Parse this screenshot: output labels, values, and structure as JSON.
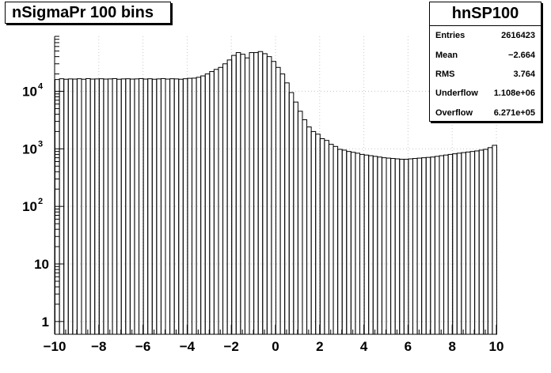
{
  "title_box": {
    "text": "nSigmaPr 100 bins"
  },
  "stats": {
    "name": "hnSP100",
    "rows": [
      {
        "label": "Entries",
        "value": "2616423"
      },
      {
        "label": "Mean",
        "value": "−2.664"
      },
      {
        "label": "RMS",
        "value": "3.764"
      },
      {
        "label": "Underflow",
        "value": "1.108e+06"
      },
      {
        "label": "Overflow",
        "value": "6.271e+05"
      }
    ]
  },
  "chart_data": {
    "type": "bar",
    "style": "histogram",
    "title": "nSigmaPr 100 bins",
    "xlabel": "",
    "ylabel": "",
    "xlim": [
      -10,
      10
    ],
    "ylim": [
      0.6,
      90000
    ],
    "y_scale": "log",
    "bins": 100,
    "bin_width": 0.2,
    "x_ticks": [
      -10,
      -8,
      -6,
      -4,
      -2,
      0,
      2,
      4,
      6,
      8,
      10
    ],
    "x_tick_labels": [
      "−10",
      "−8",
      "−6",
      "−4",
      "−2",
      "0",
      "2",
      "4",
      "6",
      "8",
      "10"
    ],
    "y_ticks": [
      1,
      10,
      100,
      1000,
      10000
    ],
    "y_tick_labels": [
      "1",
      "10",
      "10|2",
      "10|3",
      "10|4"
    ],
    "grid": true,
    "line_color": "#000000",
    "values": [
      16000,
      16500,
      16200,
      16400,
      16300,
      16500,
      16200,
      16600,
      16300,
      16400,
      16500,
      16300,
      16400,
      16600,
      16200,
      16400,
      16500,
      16300,
      16400,
      16600,
      16300,
      16500,
      16200,
      16400,
      16600,
      16300,
      16500,
      16400,
      16200,
      16500,
      16800,
      16900,
      17500,
      18500,
      20000,
      22000,
      24000,
      26000,
      30000,
      35000,
      42000,
      47000,
      44000,
      38000,
      47000,
      47000,
      49000,
      45000,
      40000,
      33000,
      26000,
      20000,
      14000,
      9500,
      6500,
      4500,
      3200,
      2400,
      2000,
      1800,
      1500,
      1400,
      1200,
      1100,
      980,
      950,
      900,
      870,
      840,
      800,
      780,
      760,
      740,
      720,
      700,
      690,
      680,
      670,
      660,
      660,
      670,
      680,
      690,
      700,
      710,
      720,
      740,
      760,
      780,
      800,
      820,
      840,
      860,
      880,
      900,
      920,
      950,
      980,
      1050,
      1150
    ]
  }
}
